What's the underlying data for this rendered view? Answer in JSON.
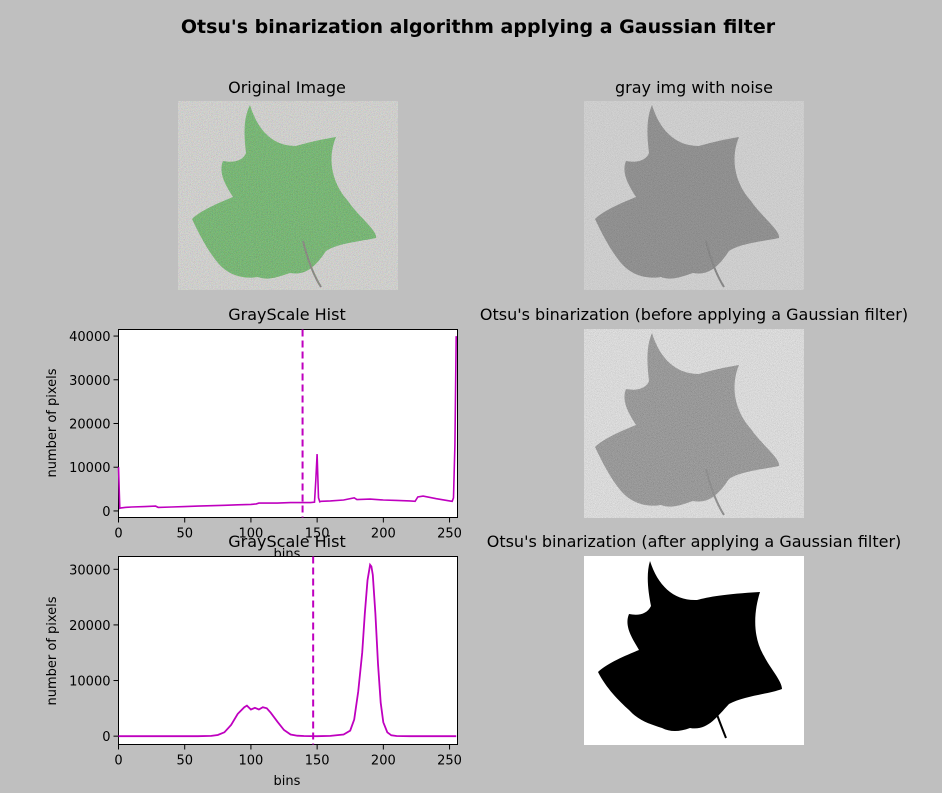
{
  "suptitle": "Otsu's binarization algorithm applying a Gaussian filter",
  "panels": {
    "original": {
      "title": "Original Image"
    },
    "gray_noise": {
      "title": "gray img with noise"
    },
    "otsu_before": {
      "title": "Otsu's binarization (before applying a Gaussian filter)"
    },
    "otsu_after": {
      "title": "Otsu's binarization (after applying a Gaussian filter)"
    }
  },
  "colors": {
    "figure_bg": "#bfbfbf",
    "histogram_line": "#bf00bf",
    "leaf_green": "#3fa03a",
    "leaf_gray": "#5a5a5a"
  },
  "chart_data": [
    {
      "type": "line",
      "title": "GrayScale Hist",
      "xlabel": "bins",
      "ylabel": "number of pixels",
      "xlim": [
        0,
        256
      ],
      "ylim": [
        -1500,
        41500
      ],
      "xticks": [
        0,
        50,
        100,
        150,
        200,
        250
      ],
      "yticks": [
        0,
        10000,
        20000,
        30000,
        40000
      ],
      "threshold": 139,
      "series": [
        {
          "x": [
            0,
            1,
            2,
            5,
            10,
            20,
            28,
            30,
            40,
            50,
            60,
            70,
            80,
            90,
            100,
            104,
            106,
            110,
            120,
            130,
            140,
            145,
            148,
            149,
            150,
            151,
            152,
            153,
            160,
            170,
            178,
            180,
            190,
            200,
            210,
            220,
            224,
            226,
            230,
            240,
            250,
            252,
            253,
            254,
            255
          ],
          "y": [
            10000,
            600,
            700,
            800,
            900,
            1000,
            1100,
            800,
            900,
            1000,
            1100,
            1200,
            1300,
            1400,
            1500,
            1600,
            1800,
            1800,
            1800,
            1900,
            1900,
            1900,
            2000,
            7000,
            13000,
            3000,
            2100,
            2200,
            2300,
            2500,
            3000,
            2600,
            2700,
            2500,
            2400,
            2300,
            2200,
            3200,
            3400,
            2800,
            2300,
            2200,
            3000,
            15000,
            40000
          ]
        }
      ]
    },
    {
      "type": "line",
      "title": "GrayScale Hist",
      "xlabel": "bins",
      "ylabel": "number of pixels",
      "xlim": [
        0,
        256
      ],
      "ylim": [
        -1500,
        32300
      ],
      "xticks": [
        0,
        50,
        100,
        150,
        200,
        250
      ],
      "yticks": [
        0,
        10000,
        20000,
        30000
      ],
      "threshold": 147,
      "series": [
        {
          "x": [
            0,
            60,
            70,
            75,
            80,
            85,
            90,
            95,
            97,
            100,
            103,
            106,
            109,
            112,
            115,
            120,
            125,
            130,
            135,
            140,
            150,
            160,
            170,
            175,
            178,
            181,
            184,
            186,
            188,
            190,
            191,
            192,
            194,
            196,
            198,
            200,
            203,
            206,
            210,
            220,
            255
          ],
          "y": [
            0,
            0,
            50,
            200,
            700,
            2000,
            4000,
            5200,
            5500,
            4800,
            5100,
            4800,
            5200,
            5000,
            4200,
            2600,
            1100,
            300,
            80,
            20,
            0,
            50,
            300,
            1000,
            3000,
            8000,
            15000,
            22000,
            28000,
            30800,
            30500,
            29000,
            22000,
            13000,
            6000,
            2500,
            700,
            150,
            20,
            0,
            0
          ]
        }
      ]
    }
  ]
}
